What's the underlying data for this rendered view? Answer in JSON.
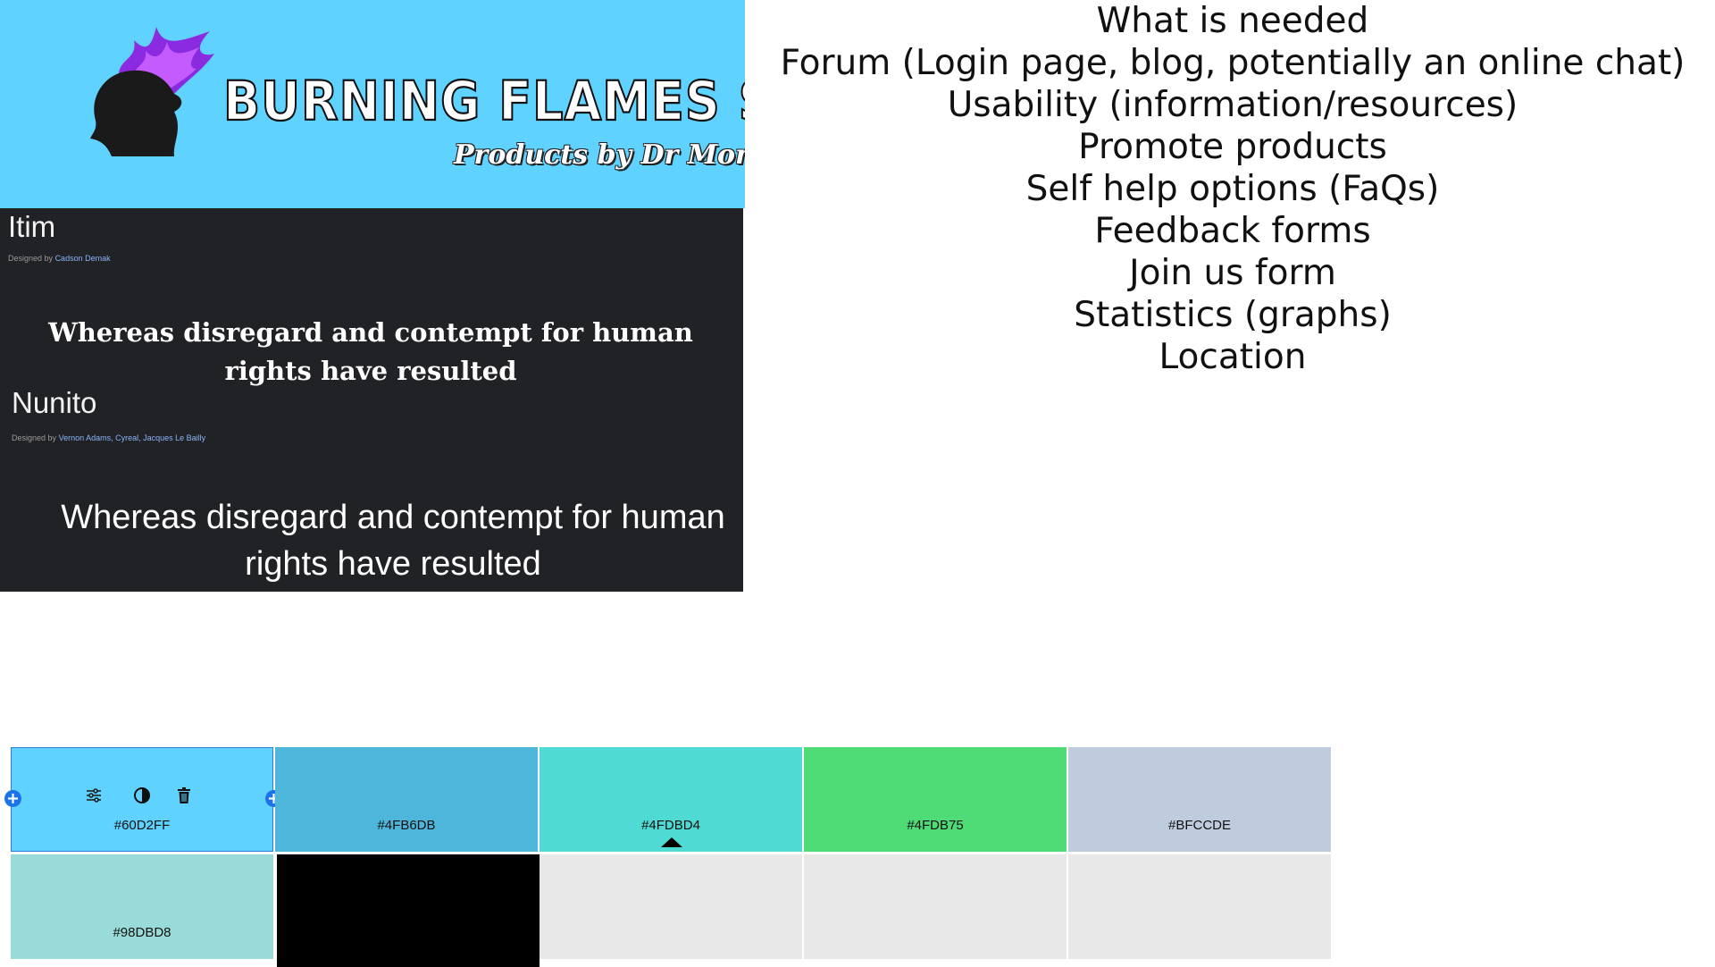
{
  "banner": {
    "title": "BURNING FLAMES SODA",
    "subtitle": "Products by Dr Monty",
    "background": "#60D2FF",
    "flame_colors": [
      "#8A2BE2",
      "#B43CF0",
      "#D16BFF"
    ]
  },
  "fonts": {
    "font1": {
      "name": "Itim",
      "designed_by": "Designed by",
      "designer": "Cadson Demak",
      "sample": "Whereas disregard and contempt for human rights have resulted"
    },
    "font2": {
      "name": "Nunito",
      "designed_by": "Designed by",
      "designer": "Vernon Adams, Cyreal, Jacques Le Bailly",
      "sample": "Whereas disregard and contempt for human rights have resulted"
    }
  },
  "needs": {
    "heading": "What is needed",
    "items": [
      "Forum (Login page, blog, potentially an online chat)",
      "Usability (information/resources)",
      "Promote products",
      "Self help options (FaQs)",
      "Feedback forms",
      "Join us form",
      "Statistics (graphs)",
      "Location"
    ]
  },
  "palette": {
    "swatches": [
      {
        "color": "#60D2FF",
        "label": "#60D2FF",
        "selected": true
      },
      {
        "color": "#4FB6DB",
        "label": "#4FB6DB"
      },
      {
        "color": "#4FDBD4",
        "label": "#4FDBD4",
        "marker": true
      },
      {
        "color": "#4FDB75",
        "label": "#4FDB75"
      },
      {
        "color": "#BFCCDE",
        "label": "#BFCCDE"
      },
      {
        "color": "#98DBD8",
        "label": "#98DBD8"
      },
      {
        "color": "#000000",
        "label": ""
      },
      {
        "color": "#E8E8E8",
        "label": ""
      },
      {
        "color": "#E8E8E8",
        "label": ""
      },
      {
        "color": "#E8E8E8",
        "label": ""
      }
    ],
    "tool_icons": [
      "sliders-icon",
      "contrast-icon",
      "trash-icon"
    ],
    "add_icon": "plus-icon"
  }
}
